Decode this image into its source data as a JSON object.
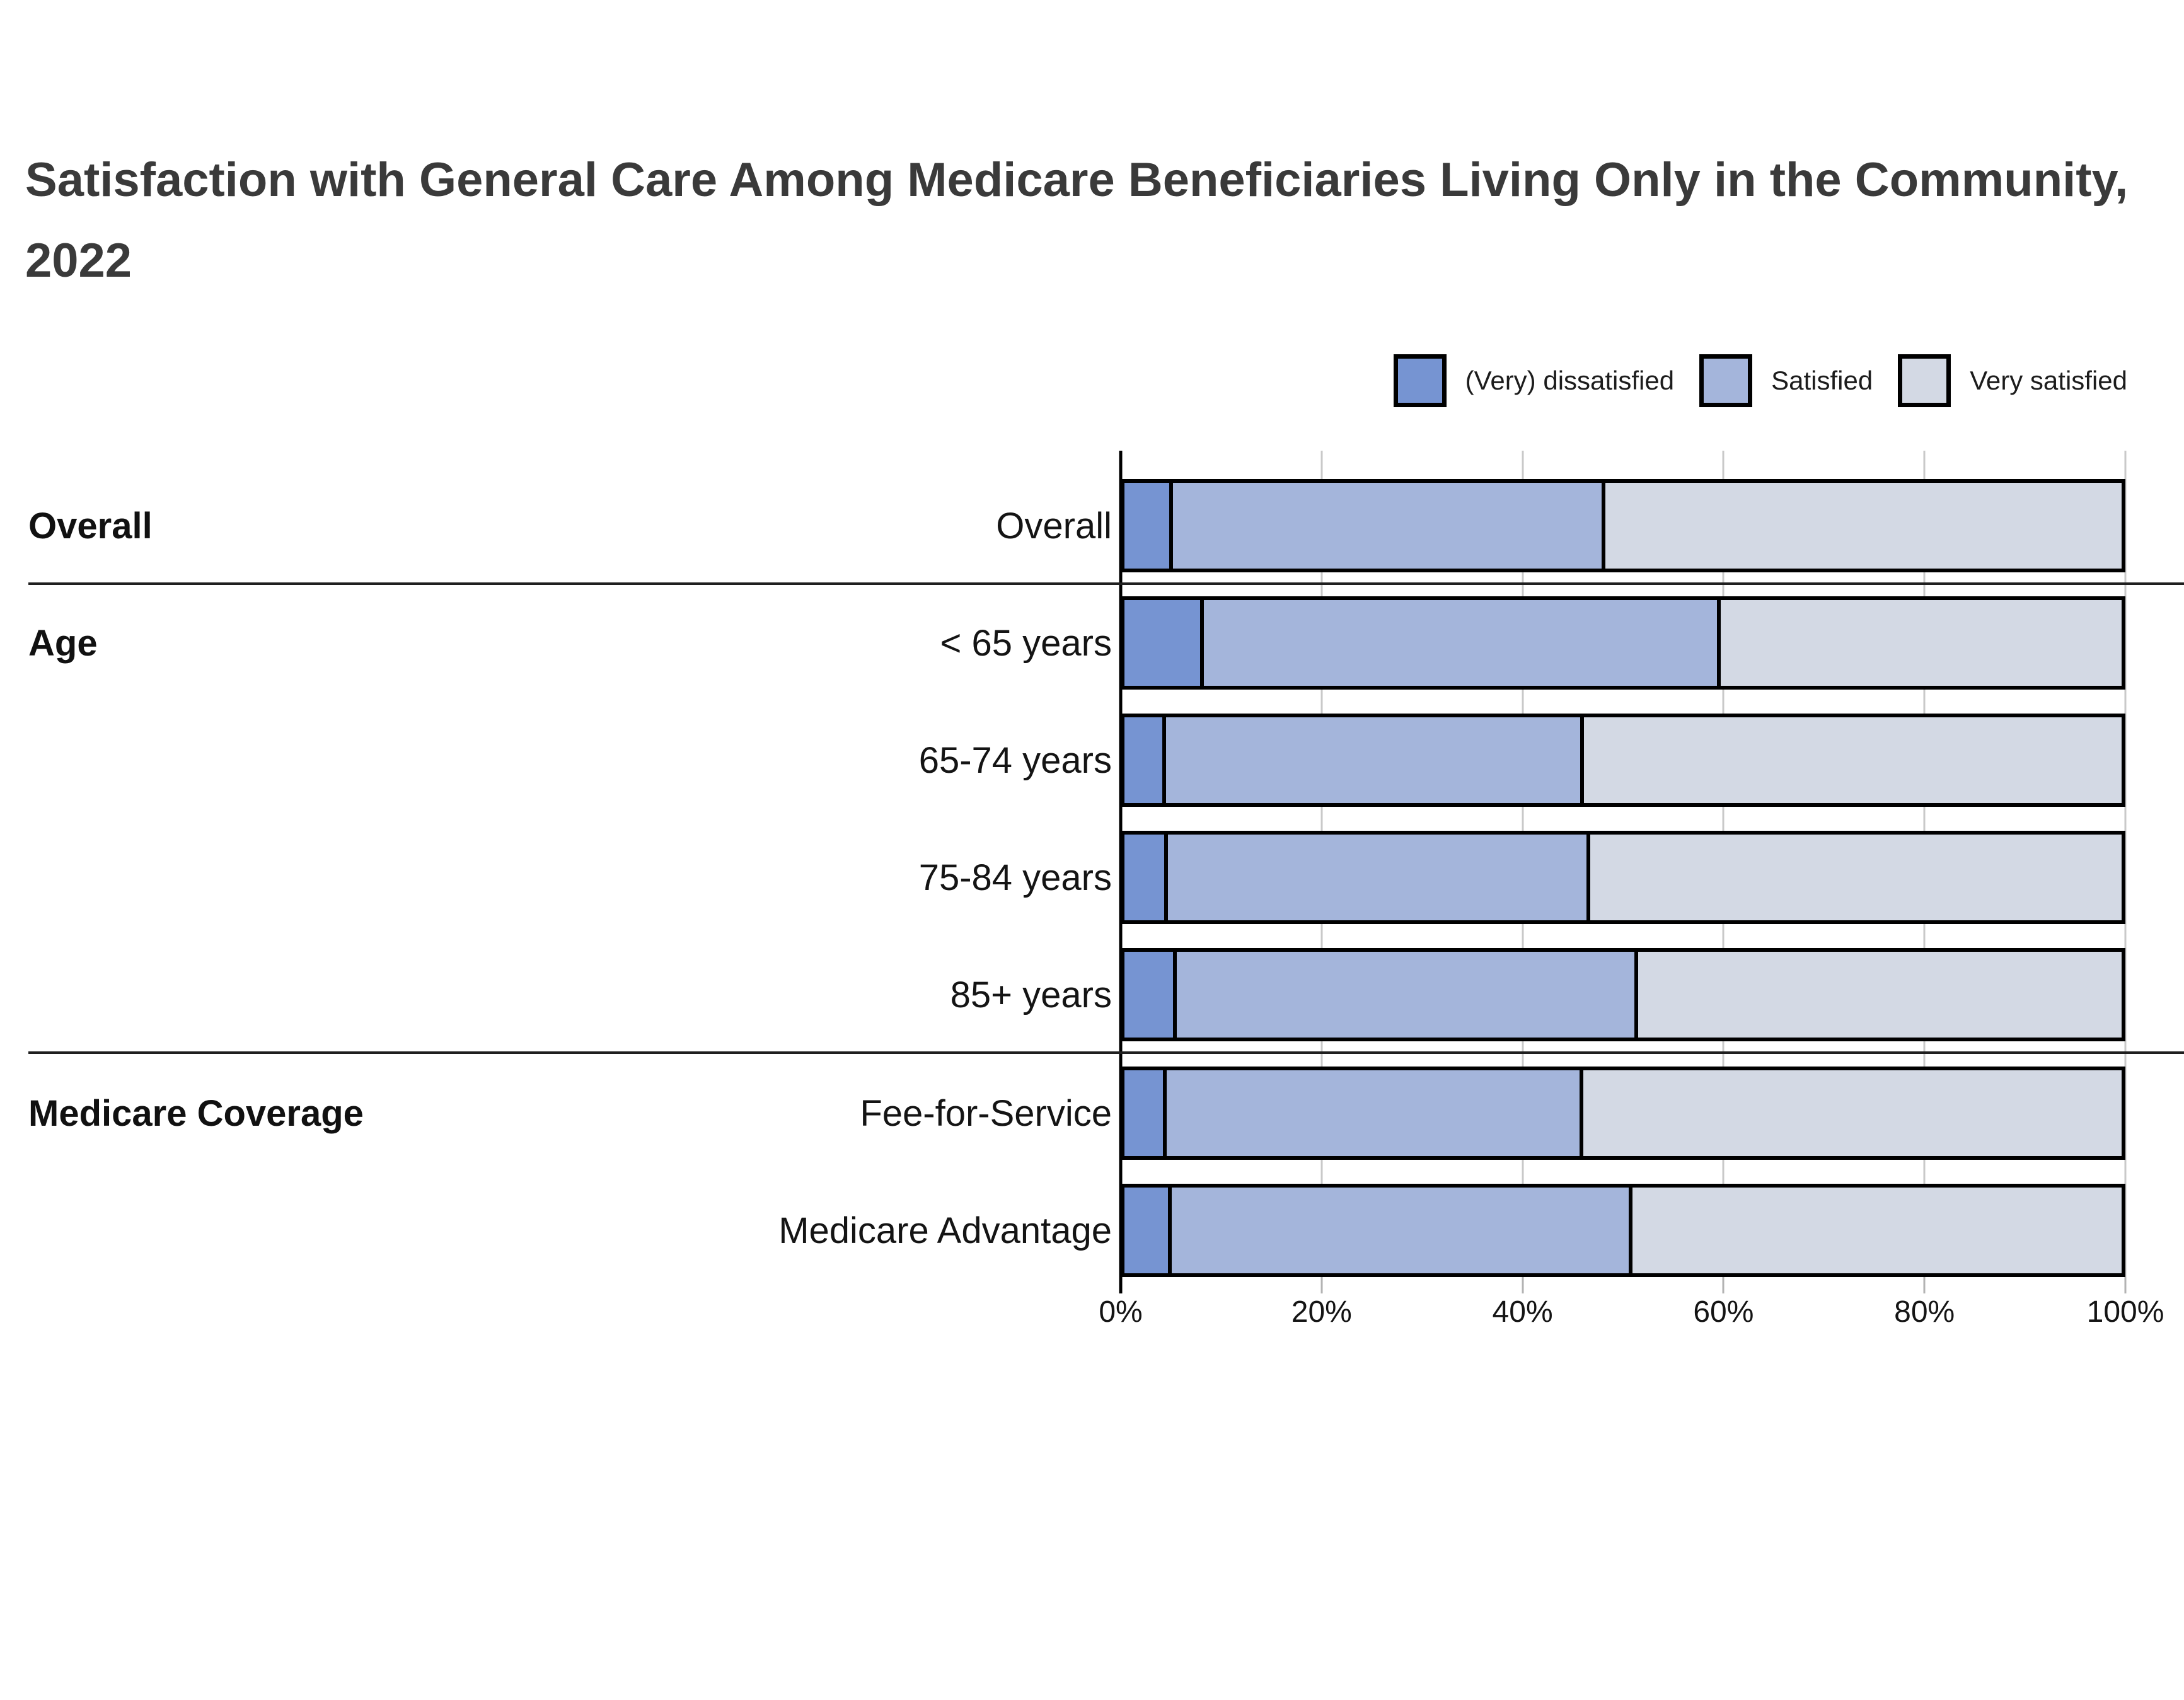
{
  "chart_data": {
    "type": "bar",
    "orientation": "horizontal",
    "stacked": true,
    "title": "Satisfaction with General Care Among Medicare Beneficiaries Living Only in the Community, 2022",
    "series": [
      "(Very) dissatisfied",
      "Satisfied",
      "Very satisfied"
    ],
    "legend": [
      {
        "label": "(Very) dissatisfied",
        "color": "#7694d2"
      },
      {
        "label": "Satisfied",
        "color": "#a4b5db"
      },
      {
        "label": "Very satisfied",
        "color": "#d3d9e4"
      }
    ],
    "legend_position": "top-right",
    "grid": true,
    "x_axis": {
      "min": 0,
      "max": 100,
      "tick_values": [
        0,
        20,
        40,
        60,
        80,
        100
      ],
      "tick_labels": [
        "0%",
        "20%",
        "40%",
        "60%",
        "80%",
        "100%"
      ]
    },
    "groups": [
      {
        "label": "Overall",
        "rows": [
          {
            "label": "Overall",
            "values": [
              5.2,
              43.4,
              51.4
            ]
          }
        ]
      },
      {
        "label": "Age",
        "rows": [
          {
            "label": "< 65 years",
            "values": [
              8.3,
              51.8,
              39.9
            ]
          },
          {
            "label": "65-74 years",
            "values": [
              4.5,
              42.0,
              53.5
            ]
          },
          {
            "label": "75-84 years",
            "values": [
              4.7,
              42.4,
              52.9
            ]
          },
          {
            "label": "85+ years",
            "values": [
              5.6,
              46.3,
              48.1
            ]
          }
        ]
      },
      {
        "label": "Medicare Coverage",
        "rows": [
          {
            "label": "Fee-for-Service",
            "values": [
              4.6,
              41.8,
              53.6
            ]
          },
          {
            "label": "Medicare Advantage",
            "values": [
              5.1,
              46.2,
              48.7
            ]
          }
        ]
      }
    ]
  },
  "colors": {
    "dissatisfied": "#7694d2",
    "satisfied": "#a4b5db",
    "very_satisfied": "#d3d9e4",
    "bar_border": "#000000",
    "gridline": "#c9c9c9",
    "group_separator": "#1f1f1f",
    "axis_tick": "#b3b3b3",
    "title_text": "#3a3a3a"
  }
}
